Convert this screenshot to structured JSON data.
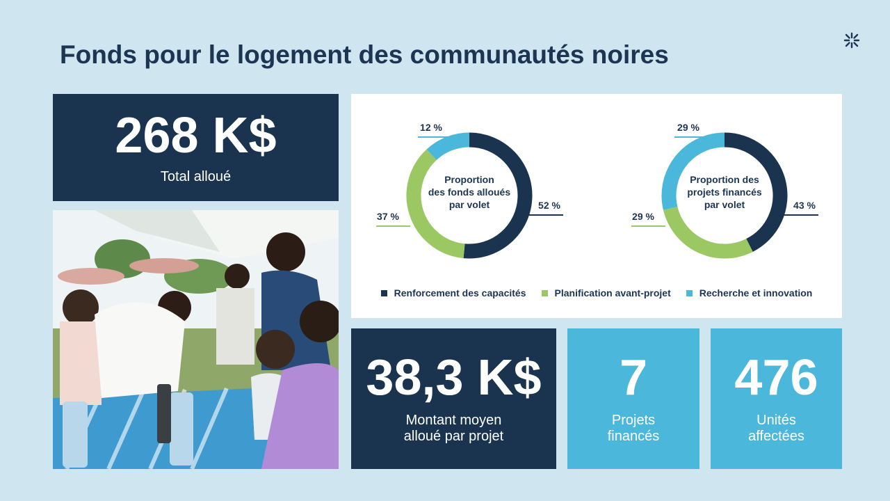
{
  "title": "Fonds pour le logement des communautés noires",
  "colors": {
    "dark": "#1a344f",
    "green": "#9bc862",
    "blue": "#4bb8db",
    "background": "#cfe5f0"
  },
  "total": {
    "value": "268 K$",
    "label": "Total alloué"
  },
  "average": {
    "value": "38,3 K$",
    "label_line1": "Montant moyen",
    "label_line2": "alloué par projet"
  },
  "projects": {
    "value": "7",
    "label_line1": "Projets",
    "label_line2": "financés"
  },
  "units": {
    "value": "476",
    "label_line1": "Unités",
    "label_line2": "affectées"
  },
  "photo": {
    "alt": "Community event photo"
  },
  "legend": [
    {
      "label": "Renforcement des capacités",
      "color": "#1a344f"
    },
    {
      "label": "Planification avant-projet",
      "color": "#9bc862"
    },
    {
      "label": "Recherche et innovation",
      "color": "#4bb8db"
    }
  ],
  "chart_data": [
    {
      "type": "pie",
      "donut": true,
      "title": "Proportion des fonds alloués par volet",
      "title_lines": [
        "Proportion",
        "des fonds alloués",
        "par volet"
      ],
      "categories": [
        "Renforcement des capacités",
        "Planification avant-projet",
        "Recherche et innovation"
      ],
      "values": [
        52,
        37,
        12
      ],
      "labels": [
        "52 %",
        "37 %",
        "12 %"
      ],
      "unit": "%"
    },
    {
      "type": "pie",
      "donut": true,
      "title": "Proportion des projets financés par volet",
      "title_lines": [
        "Proportion des",
        "projets financés",
        "par volet"
      ],
      "categories": [
        "Renforcement des capacités",
        "Planification avant-projet",
        "Recherche et innovation"
      ],
      "values": [
        43,
        29,
        29
      ],
      "labels": [
        "43 %",
        "29 %",
        "29 %"
      ],
      "unit": "%"
    }
  ]
}
